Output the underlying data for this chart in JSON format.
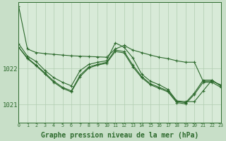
{
  "background_color": "#c8dfc8",
  "plot_bg_color": "#d8ead8",
  "grid_color": "#b0ccb0",
  "line_color": "#2d6a2d",
  "xlabel": "Graphe pression niveau de la mer (hPa)",
  "xlabel_fontsize": 7,
  "x_min": 0,
  "x_max": 23,
  "y_min": 1020.5,
  "y_max": 1023.85,
  "yticks": [
    1021,
    1022
  ],
  "series": [
    [
      1023.75,
      1022.55,
      1022.45,
      1022.42,
      1022.4,
      1022.38,
      1022.36,
      1022.35,
      1022.34,
      1022.33,
      1022.32,
      1022.55,
      1022.65,
      1022.52,
      1022.45,
      1022.38,
      1022.32,
      1022.28,
      1022.22,
      1022.18,
      1022.18,
      1021.65,
      1021.65,
      1021.55
    ],
    [
      1022.7,
      1022.35,
      1022.2,
      1021.95,
      1021.75,
      1021.62,
      1021.52,
      1021.95,
      1022.12,
      1022.18,
      1022.22,
      1022.72,
      1022.6,
      1022.3,
      1021.85,
      1021.65,
      1021.55,
      1021.42,
      1021.1,
      1021.08,
      1021.08,
      1021.38,
      1021.68,
      1021.52
    ],
    [
      1022.6,
      1022.3,
      1022.1,
      1021.88,
      1021.65,
      1021.48,
      1021.38,
      1021.82,
      1022.05,
      1022.12,
      1022.18,
      1022.52,
      1022.48,
      1022.1,
      1021.78,
      1021.58,
      1021.48,
      1021.38,
      1021.08,
      1021.05,
      1021.32,
      1021.68,
      1021.68,
      1021.52
    ],
    [
      1022.6,
      1022.28,
      1022.08,
      1021.85,
      1021.62,
      1021.45,
      1021.35,
      1021.78,
      1022.02,
      1022.1,
      1022.15,
      1022.48,
      1022.44,
      1022.05,
      1021.75,
      1021.55,
      1021.45,
      1021.35,
      1021.05,
      1021.02,
      1021.28,
      1021.62,
      1021.62,
      1021.48
    ]
  ]
}
